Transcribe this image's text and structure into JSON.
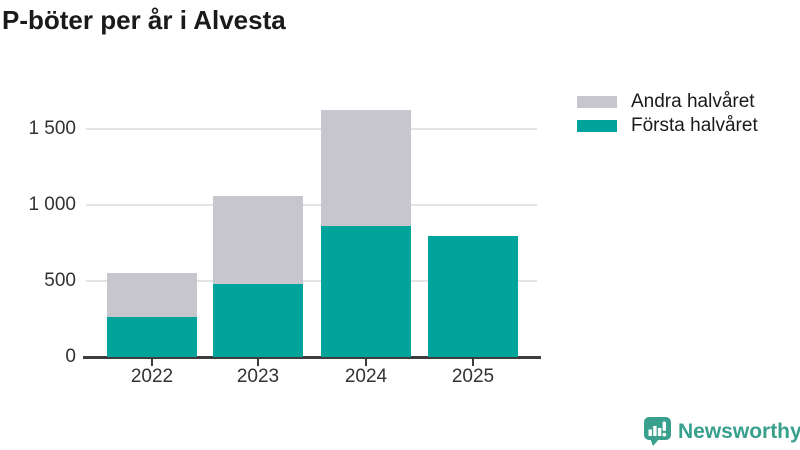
{
  "title": "P-böter per år i Alvesta",
  "chart_data": {
    "type": "bar",
    "stacked": true,
    "title": "P-böter per år i Alvesta",
    "categories": [
      "2022",
      "2023",
      "2024",
      "2025"
    ],
    "series": [
      {
        "name": "Första halvåret",
        "color": "#00A49B",
        "values": [
          265,
          480,
          865,
          795
        ]
      },
      {
        "name": "Andra halvåret",
        "color": "#C7C6CE",
        "values": [
          285,
          580,
          760,
          0
        ]
      }
    ],
    "totals": [
      550,
      1060,
      1625,
      795
    ],
    "yticks": [
      {
        "value": 0,
        "label": "0"
      },
      {
        "value": 500,
        "label": "500"
      },
      {
        "value": 1000,
        "label": "1 000"
      },
      {
        "value": 1500,
        "label": "1 500"
      }
    ],
    "ylim": [
      0,
      1700
    ],
    "xlabel": "",
    "ylabel": "",
    "grid": "horizontal",
    "legend_position": "top-right"
  },
  "legend": {
    "items": [
      {
        "label": "Andra halvåret",
        "color": "#C7C6CE"
      },
      {
        "label": "Första halvåret",
        "color": "#00A49B"
      }
    ]
  },
  "branding": {
    "label": "Newsworthy",
    "color": "#38A08C",
    "icon": "newsworthy-speech-bubble-chart-icon"
  }
}
